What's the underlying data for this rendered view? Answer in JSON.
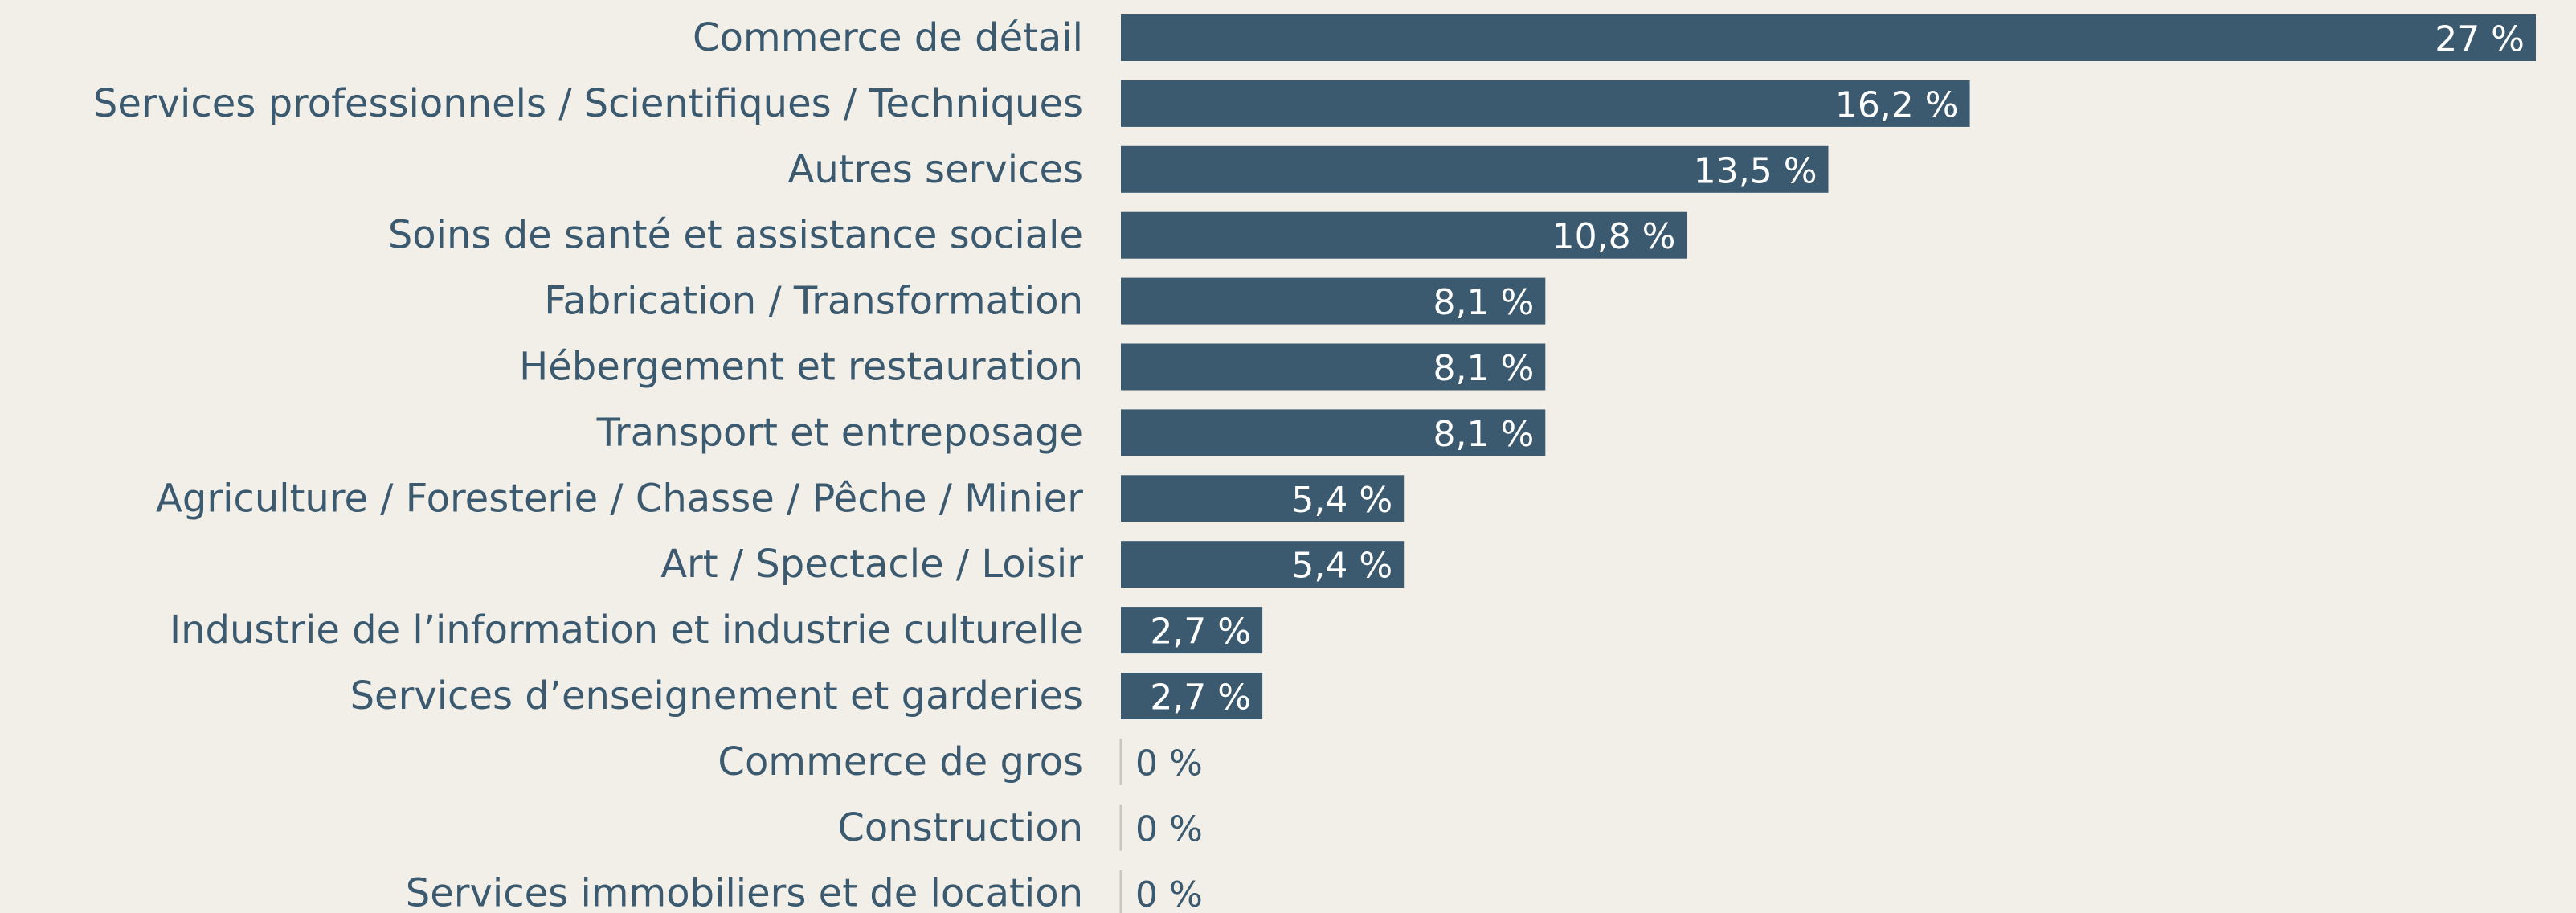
{
  "chart_data": {
    "type": "bar",
    "orientation": "horizontal",
    "categories": [
      "Commerce de détail",
      "Services professionnels / Scientifiques / Techniques",
      "Autres services",
      "Soins de santé et assistance sociale",
      "Fabrication / Transformation",
      "Hébergement et restauration",
      "Transport et entreposage",
      "Agriculture / Foresterie / Chasse / Pêche / Minier",
      "Art / Spectacle / Loisir",
      "Industrie de l’information et industrie culturelle",
      "Services d’enseignement et garderies",
      "Commerce de gros",
      "Construction",
      "Services immobiliers et de location"
    ],
    "values": [
      27,
      16.2,
      13.5,
      10.8,
      8.1,
      8.1,
      8.1,
      5.4,
      5.4,
      2.7,
      2.7,
      0,
      0,
      0
    ],
    "value_labels": [
      "27 %",
      "16,2 %",
      "13,5 %",
      "10,8 %",
      "8,1 %",
      "8,1 %",
      "8,1 %",
      "5,4 %",
      "5,4 %",
      "2,7 %",
      "2,7 %",
      "0 %",
      "0 %",
      "0 %"
    ],
    "color": "#3b5a70"
  }
}
